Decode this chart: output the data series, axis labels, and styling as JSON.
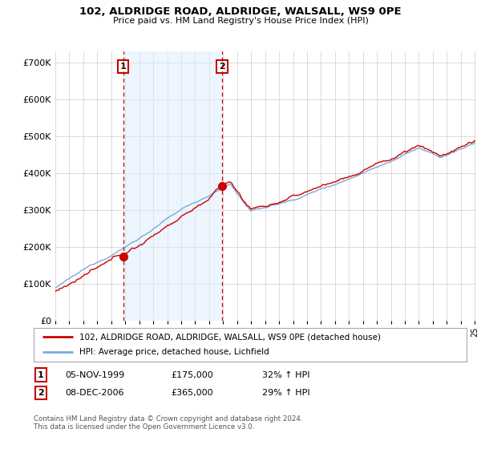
{
  "title_line1": "102, ALDRIDGE ROAD, ALDRIDGE, WALSALL, WS9 0PE",
  "title_line2": "Price paid vs. HM Land Registry's House Price Index (HPI)",
  "ylim": [
    0,
    700000
  ],
  "yticks": [
    0,
    100000,
    200000,
    300000,
    400000,
    500000,
    600000,
    700000
  ],
  "sale1_date": 1999.85,
  "sale1_price": 175000,
  "sale2_date": 2006.93,
  "sale2_price": 365000,
  "hpi_color": "#7aaadd",
  "hpi_fill_color": "#ddeeff",
  "price_color": "#cc0000",
  "marker_color": "#cc0000",
  "legend_label_price": "102, ALDRIDGE ROAD, ALDRIDGE, WALSALL, WS9 0PE (detached house)",
  "legend_label_hpi": "HPI: Average price, detached house, Lichfield",
  "table_row1": [
    "1",
    "05-NOV-1999",
    "£175,000",
    "32% ↑ HPI"
  ],
  "table_row2": [
    "2",
    "08-DEC-2006",
    "£365,000",
    "29% ↑ HPI"
  ],
  "footnote": "Contains HM Land Registry data © Crown copyright and database right 2024.\nThis data is licensed under the Open Government Licence v3.0.",
  "background_color": "#ffffff",
  "grid_color": "#cccccc",
  "shade_color": "#ddeeff"
}
